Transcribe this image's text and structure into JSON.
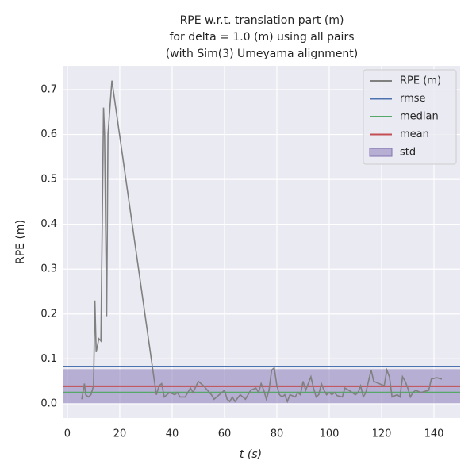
{
  "chart_data": {
    "type": "line",
    "title": [
      "RPE w.r.t. translation part (m)",
      "for delta = 1.0 (m) using all pairs",
      "(with Sim(3) Umeyama alignment)"
    ],
    "xlabel": "t (s)",
    "ylabel": "RPE (m)",
    "xlim": [
      -1.5,
      150
    ],
    "ylim": [
      -0.032,
      0.753
    ],
    "xticks": [
      0,
      20,
      40,
      60,
      80,
      100,
      120,
      140
    ],
    "yticks": [
      {
        "value": 0,
        "label": "0.0"
      },
      0.1,
      0.2,
      0.3,
      0.4,
      0.5,
      0.6,
      0.7
    ],
    "grid": true,
    "legend": "upper right",
    "series": [
      {
        "name": "RPE (m)",
        "color": "#808080",
        "x": [
          5.5,
          6.5,
          7,
          8,
          9,
          10,
          10.5,
          11,
          12,
          12.8,
          13.8,
          14.2,
          15,
          15.5,
          17,
          33,
          34,
          35,
          36,
          37,
          39,
          41,
          42,
          43,
          45,
          47,
          48,
          50,
          52,
          55,
          56,
          58,
          60,
          61,
          62,
          63,
          64,
          66,
          68,
          70,
          72,
          73,
          74,
          75,
          76,
          77,
          78,
          79,
          80,
          81,
          82,
          83,
          84,
          85,
          87,
          88,
          89,
          90,
          91,
          93,
          94,
          95,
          96,
          97,
          98,
          99,
          100,
          101,
          102,
          103,
          105,
          106,
          108,
          110,
          111,
          112,
          113,
          114,
          116,
          117,
          119,
          121,
          122,
          123,
          124,
          126,
          127,
          128,
          129,
          130,
          131,
          132,
          133,
          135,
          138,
          139,
          141,
          143
        ],
        "values": [
          0.01,
          0.045,
          0.02,
          0.015,
          0.02,
          0.04,
          0.23,
          0.115,
          0.145,
          0.14,
          0.66,
          0.6,
          0.195,
          0.6,
          0.72,
          0.06,
          0.02,
          0.04,
          0.045,
          0.015,
          0.025,
          0.02,
          0.025,
          0.015,
          0.015,
          0.035,
          0.025,
          0.05,
          0.04,
          0.02,
          0.01,
          0.02,
          0.03,
          0.01,
          0.005,
          0.015,
          0.005,
          0.02,
          0.01,
          0.03,
          0.035,
          0.025,
          0.045,
          0.03,
          0.01,
          0.03,
          0.075,
          0.08,
          0.04,
          0.02,
          0.015,
          0.02,
          0.005,
          0.02,
          0.015,
          0.025,
          0.02,
          0.05,
          0.03,
          0.06,
          0.035,
          0.015,
          0.02,
          0.045,
          0.03,
          0.02,
          0.025,
          0.02,
          0.025,
          0.018,
          0.015,
          0.035,
          0.028,
          0.02,
          0.025,
          0.04,
          0.015,
          0.025,
          0.075,
          0.05,
          0.045,
          0.04,
          0.075,
          0.06,
          0.015,
          0.02,
          0.015,
          0.06,
          0.05,
          0.035,
          0.015,
          0.025,
          0.03,
          0.025,
          0.03,
          0.055,
          0.058,
          0.055
        ]
      },
      {
        "name": "rmse",
        "color": "#4c72b0",
        "value": 0.083
      },
      {
        "name": "median",
        "color": "#55a868",
        "value": 0.025
      },
      {
        "name": "mean",
        "color": "#c44e52",
        "value": 0.039
      },
      {
        "name": "std",
        "color": "#8172b3",
        "value": 0.038
      }
    ]
  }
}
